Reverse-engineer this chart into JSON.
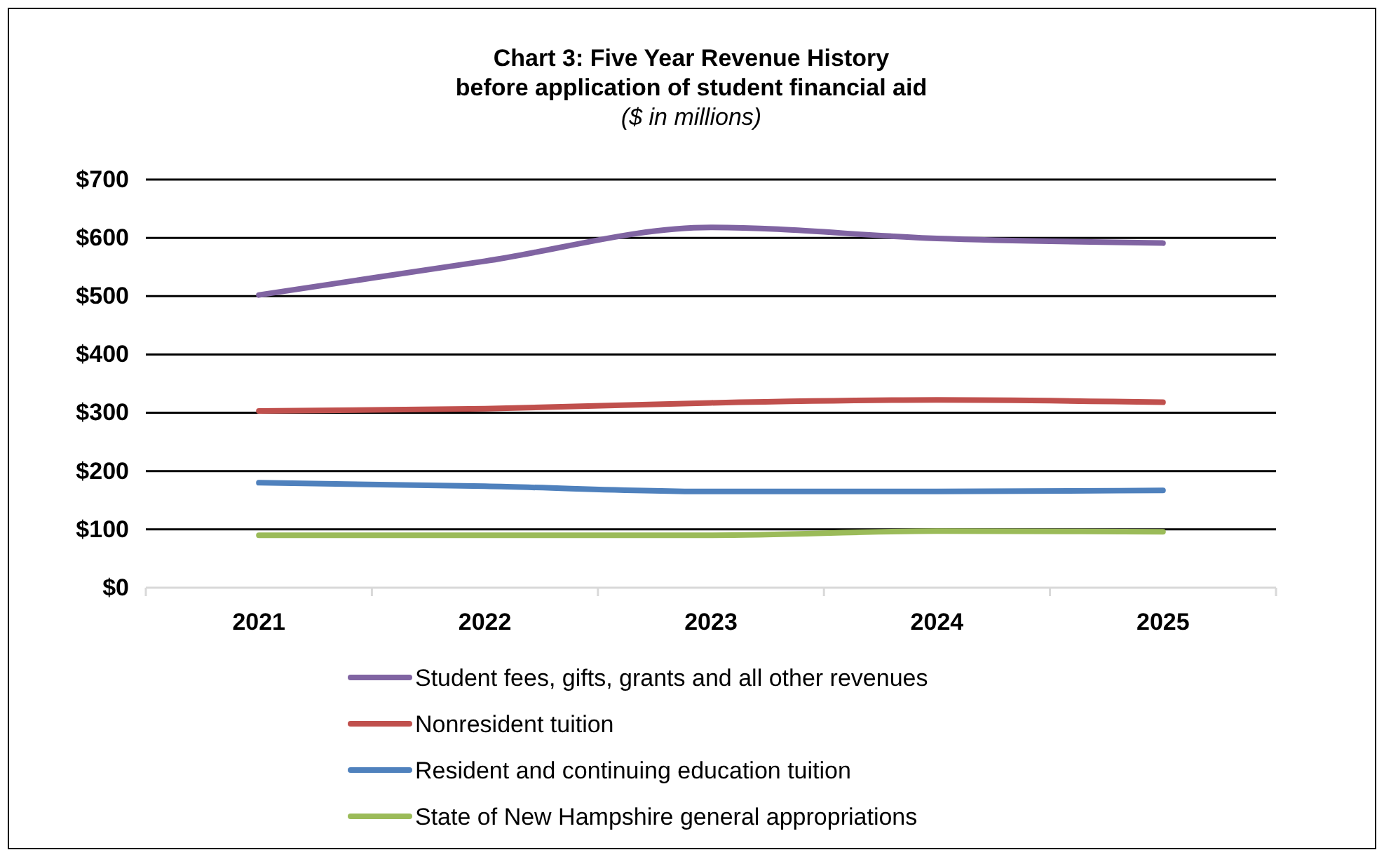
{
  "chart_data": {
    "type": "line",
    "title": "Chart 3: Five Year Revenue History\nbefore application of student financial aid",
    "subtitle": "($ in millions)",
    "categories": [
      "2021",
      "2022",
      "2023",
      "2024",
      "2025"
    ],
    "series": [
      {
        "name": "Student fees, gifts, grants and all other revenues",
        "color": "#8064a2",
        "values": [
          502,
          560,
          618,
          599,
          591
        ]
      },
      {
        "name": "Nonresident tuition",
        "color": "#c0504d",
        "values": [
          303,
          307,
          317,
          322,
          318
        ]
      },
      {
        "name": "Resident and continuing education tuition",
        "color": "#4f81bd",
        "values": [
          180,
          174,
          165,
          165,
          167
        ]
      },
      {
        "name": "State of New Hampshire general appropriations",
        "color": "#9bbb59",
        "values": [
          90,
          90,
          90,
          97,
          96
        ]
      }
    ],
    "ylim": [
      0,
      700
    ],
    "yticks": [
      {
        "value": 0,
        "label": "$0"
      },
      {
        "value": 100,
        "label": "$100"
      },
      {
        "value": 200,
        "label": "$200"
      },
      {
        "value": 300,
        "label": "$300"
      },
      {
        "value": 400,
        "label": "$400"
      },
      {
        "value": 500,
        "label": "$500"
      },
      {
        "value": 600,
        "label": "$600"
      },
      {
        "value": 700,
        "label": "$700"
      }
    ],
    "grid": "y",
    "legend": "bottom",
    "marker": "none",
    "line_style": "solid"
  }
}
